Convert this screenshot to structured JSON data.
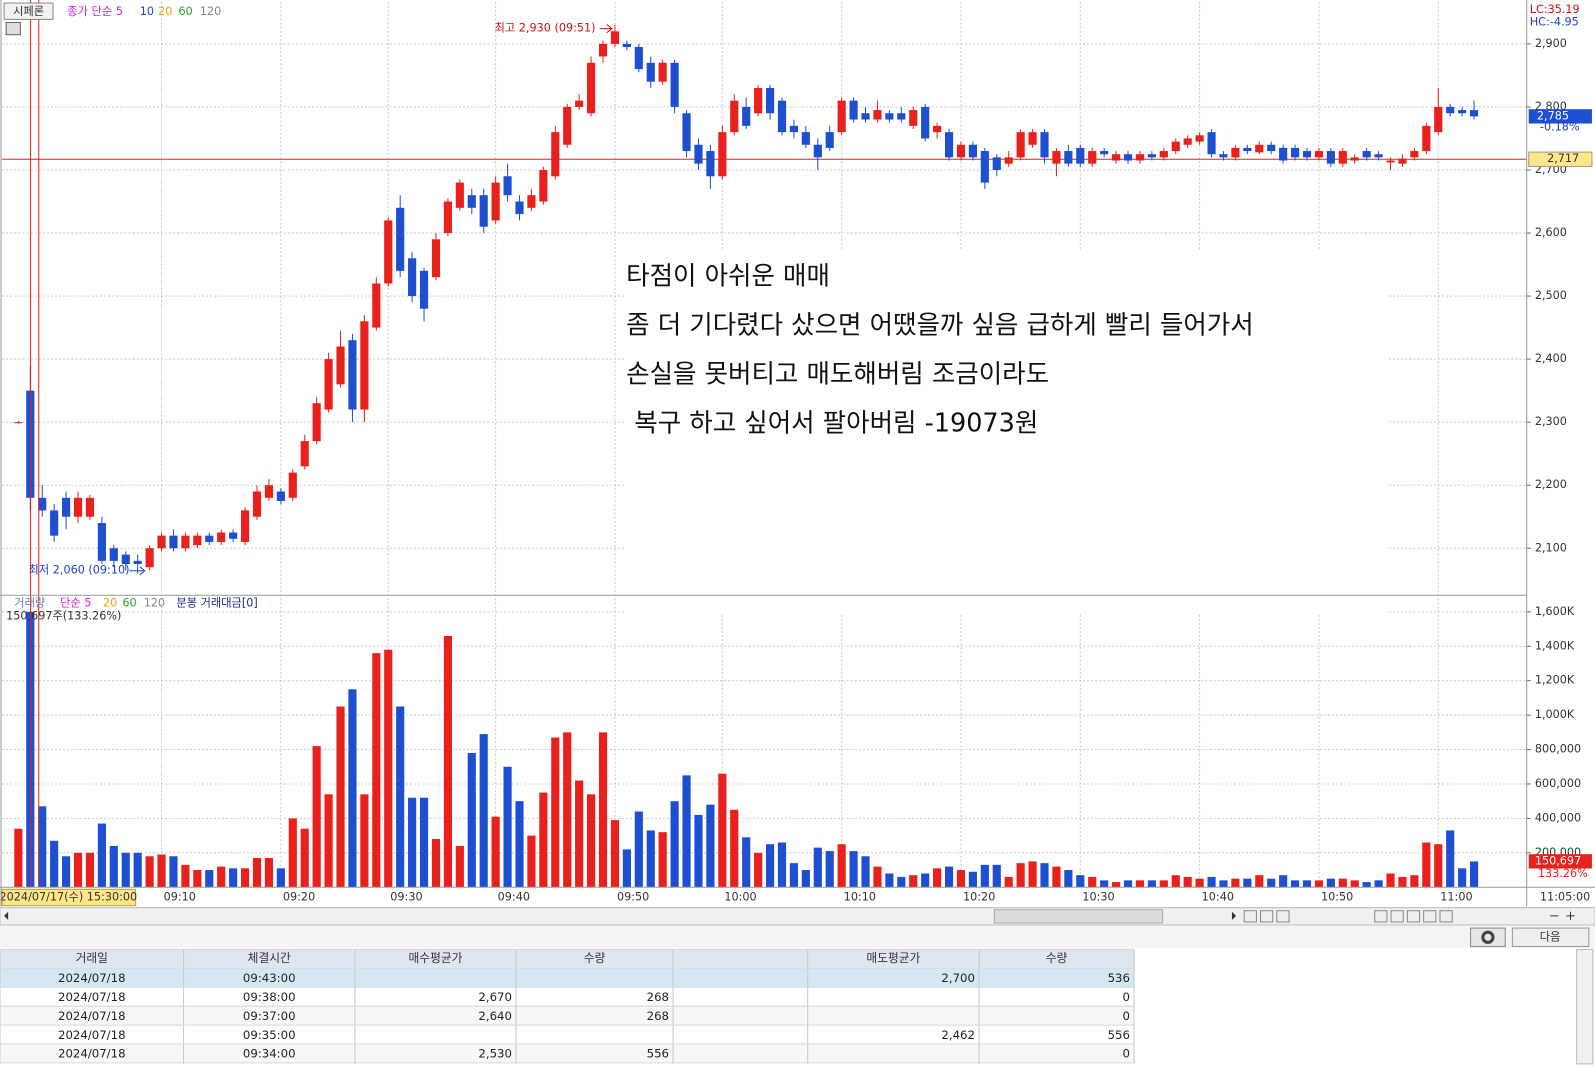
{
  "chart_data": {
    "type": "candlestick",
    "categories": [
      "2024/07/17(수) 15:30:00",
      null,
      null,
      null,
      null,
      null,
      null,
      null,
      null,
      null,
      null,
      null,
      "09:10",
      null,
      null,
      null,
      null,
      null,
      null,
      null,
      null,
      null,
      "09:20",
      null,
      null,
      null,
      null,
      null,
      null,
      null,
      null,
      "09:30",
      null,
      null,
      null,
      null,
      null,
      null,
      null,
      null,
      "09:40",
      null,
      null,
      null,
      null,
      null,
      null,
      null,
      null,
      null,
      "09:50",
      null,
      null,
      null,
      null,
      null,
      null,
      null,
      null,
      "10:00",
      null,
      null,
      null,
      null,
      null,
      null,
      null,
      null,
      null,
      "10:10",
      null,
      null,
      null,
      null,
      null,
      null,
      null,
      null,
      null,
      "10:20",
      null,
      null,
      null,
      null,
      null,
      null,
      null,
      null,
      null,
      "10:30",
      null,
      null,
      null,
      null,
      null,
      null,
      null,
      null,
      null,
      "10:40",
      null,
      null,
      null,
      null,
      null,
      null,
      null,
      null,
      null,
      "10:50",
      null,
      null,
      null,
      null,
      null,
      null,
      null,
      null,
      null,
      "11:00",
      null,
      null,
      null
    ],
    "open": [
      2300,
      2350,
      2180,
      2160,
      2180,
      2150,
      2150,
      2140,
      2100,
      2090,
      2080,
      2070,
      2100,
      2120,
      2100,
      2105,
      2120,
      2110,
      2125,
      2110,
      2150,
      2180,
      2190,
      2180,
      2230,
      2270,
      2320,
      2360,
      2430,
      2320,
      2450,
      2520,
      2640,
      2560,
      2540,
      2530,
      2600,
      2640,
      2660,
      2660,
      2620,
      2690,
      2650,
      2640,
      2650,
      2690,
      2740,
      2800,
      2790,
      2880,
      2900,
      2900,
      2895,
      2870,
      2840,
      2870,
      2790,
      2740,
      2730,
      2690,
      2760,
      2800,
      2790,
      2830,
      2810,
      2770,
      2760,
      2740,
      2760,
      2760,
      2810,
      2790,
      2780,
      2790,
      2790,
      2770,
      2800,
      2760,
      2760,
      2720,
      2740,
      2730,
      2720,
      2710,
      2720,
      2740,
      2760,
      2710,
      2730,
      2735,
      2710,
      2730,
      2715,
      2725,
      2715,
      2725,
      2720,
      2730,
      2740,
      2745,
      2760,
      2725,
      2720,
      2735,
      2728,
      2740,
      2735,
      2735,
      2730,
      2720,
      2730,
      2710,
      2715,
      2730,
      2725,
      2712,
      2710,
      2720,
      2730,
      2760,
      2800,
      2795,
      2795
    ],
    "high": [
      2302,
      2390,
      2200,
      2170,
      2190,
      2190,
      2185,
      2150,
      2105,
      2095,
      2090,
      2105,
      2125,
      2130,
      2125,
      2125,
      2125,
      2130,
      2130,
      2165,
      2200,
      2210,
      2195,
      2225,
      2280,
      2340,
      2410,
      2445,
      2440,
      2470,
      2530,
      2625,
      2660,
      2570,
      2545,
      2600,
      2655,
      2685,
      2670,
      2670,
      2690,
      2710,
      2660,
      2670,
      2705,
      2770,
      2805,
      2820,
      2880,
      2905,
      2930,
      2905,
      2900,
      2880,
      2875,
      2875,
      2795,
      2750,
      2740,
      2770,
      2820,
      2815,
      2835,
      2835,
      2815,
      2780,
      2770,
      2750,
      2770,
      2815,
      2815,
      2800,
      2810,
      2795,
      2800,
      2800,
      2805,
      2775,
      2765,
      2745,
      2745,
      2735,
      2725,
      2730,
      2765,
      2765,
      2765,
      2735,
      2740,
      2740,
      2735,
      2735,
      2730,
      2730,
      2730,
      2730,
      2735,
      2750,
      2755,
      2760,
      2765,
      2730,
      2740,
      2740,
      2745,
      2745,
      2740,
      2740,
      2735,
      2735,
      2735,
      2735,
      2725,
      2735,
      2730,
      2720,
      2725,
      2735,
      2775,
      2830,
      2805,
      2800,
      2810
    ],
    "low": [
      2298,
      2160,
      2150,
      2110,
      2130,
      2140,
      2145,
      2075,
      2070,
      2065,
      2060,
      2065,
      2095,
      2095,
      2095,
      2100,
      2105,
      2105,
      2110,
      2105,
      2145,
      2175,
      2170,
      2175,
      2225,
      2265,
      2315,
      2355,
      2300,
      2300,
      2445,
      2515,
      2530,
      2490,
      2460,
      2525,
      2595,
      2635,
      2630,
      2600,
      2615,
      2650,
      2620,
      2635,
      2645,
      2685,
      2735,
      2795,
      2785,
      2870,
      2895,
      2890,
      2855,
      2830,
      2835,
      2790,
      2720,
      2700,
      2670,
      2685,
      2755,
      2765,
      2785,
      2780,
      2755,
      2750,
      2735,
      2700,
      2730,
      2755,
      2775,
      2775,
      2775,
      2775,
      2775,
      2765,
      2745,
      2750,
      2715,
      2715,
      2715,
      2670,
      2690,
      2705,
      2715,
      2735,
      2710,
      2690,
      2705,
      2705,
      2705,
      2720,
      2710,
      2710,
      2710,
      2715,
      2715,
      2725,
      2735,
      2740,
      2720,
      2715,
      2715,
      2725,
      2725,
      2725,
      2710,
      2715,
      2715,
      2715,
      2705,
      2705,
      2710,
      2715,
      2715,
      2700,
      2705,
      2715,
      2725,
      2755,
      2785,
      2785,
      2780
    ],
    "close": [
      2300,
      2180,
      2160,
      2120,
      2150,
      2180,
      2180,
      2080,
      2080,
      2075,
      2075,
      2100,
      2120,
      2100,
      2120,
      2120,
      2110,
      2125,
      2115,
      2160,
      2190,
      2200,
      2175,
      2220,
      2270,
      2330,
      2400,
      2420,
      2320,
      2460,
      2520,
      2620,
      2540,
      2500,
      2480,
      2590,
      2650,
      2680,
      2640,
      2610,
      2680,
      2660,
      2630,
      2660,
      2700,
      2760,
      2800,
      2810,
      2870,
      2900,
      2920,
      2895,
      2860,
      2840,
      2870,
      2800,
      2730,
      2710,
      2690,
      2760,
      2810,
      2770,
      2830,
      2790,
      2760,
      2760,
      2740,
      2720,
      2735,
      2810,
      2780,
      2780,
      2795,
      2780,
      2780,
      2795,
      2750,
      2770,
      2720,
      2740,
      2720,
      2680,
      2700,
      2720,
      2760,
      2760,
      2720,
      2730,
      2710,
      2710,
      2730,
      2725,
      2725,
      2715,
      2725,
      2720,
      2730,
      2745,
      2750,
      2755,
      2725,
      2720,
      2735,
      2730,
      2740,
      2730,
      2715,
      2720,
      2720,
      2730,
      2710,
      2730,
      2720,
      2720,
      2720,
      2715,
      2718,
      2730,
      2770,
      2800,
      2790,
      2790,
      2785
    ],
    "up_color": "#e8211c",
    "down_color": "#1f4fd1",
    "ylim": [
      2036,
      2967
    ],
    "yticks": [
      {
        "value": 2100,
        "label": "2,100"
      },
      {
        "value": 2200,
        "label": "2,200"
      },
      {
        "value": 2300,
        "label": "2,300"
      },
      {
        "value": 2400,
        "label": "2,400"
      },
      {
        "value": 2500,
        "label": "2,500"
      },
      {
        "value": 2600,
        "label": "2,600"
      },
      {
        "value": 2700,
        "label": "2,700"
      },
      {
        "value": 2800,
        "label": "2,800"
      },
      {
        "value": 2900,
        "label": "2,900"
      }
    ],
    "grid": true,
    "ref_line": {
      "value": 2717,
      "label": "2,717",
      "color": "#e8211c"
    },
    "price_label": {
      "value": 2785,
      "label": "2,785"
    },
    "volume": {
      "values": [
        340000,
        1600000,
        470000,
        270000,
        180000,
        200000,
        200000,
        370000,
        240000,
        200000,
        200000,
        180000,
        190000,
        180000,
        130000,
        100000,
        100000,
        120000,
        110000,
        110000,
        170000,
        170000,
        110000,
        400000,
        340000,
        820000,
        540000,
        1050000,
        1150000,
        540000,
        1360000,
        1380000,
        1050000,
        520000,
        520000,
        280000,
        1460000,
        240000,
        780000,
        890000,
        410000,
        700000,
        500000,
        300000,
        550000,
        870000,
        900000,
        620000,
        540000,
        900000,
        390000,
        220000,
        440000,
        330000,
        320000,
        500000,
        650000,
        420000,
        480000,
        660000,
        450000,
        290000,
        200000,
        250000,
        260000,
        140000,
        100000,
        230000,
        210000,
        250000,
        210000,
        180000,
        120000,
        80000,
        60000,
        70000,
        80000,
        110000,
        120000,
        100000,
        90000,
        130000,
        130000,
        60000,
        140000,
        150000,
        140000,
        120000,
        100000,
        70000,
        60000,
        40000,
        30000,
        40000,
        40000,
        40000,
        40000,
        70000,
        60000,
        50000,
        60000,
        40000,
        50000,
        50000,
        70000,
        50000,
        70000,
        40000,
        40000,
        40000,
        50000,
        50000,
        40000,
        30000,
        40000,
        80000,
        60000,
        70000,
        260000,
        250000,
        330000,
        110000,
        150000
      ],
      "ylim": [
        0,
        1655000
      ],
      "yticks": [
        {
          "value": 200000,
          "label": "200,000"
        },
        {
          "value": 400000,
          "label": "400,000"
        },
        {
          "value": 600000,
          "label": "600,000"
        },
        {
          "value": 800000,
          "label": "800,000"
        },
        {
          "value": 1000000,
          "label": "1,000K"
        },
        {
          "value": 1200000,
          "label": "1,200K"
        },
        {
          "value": 1400000,
          "label": "1,400K"
        },
        {
          "value": 1600000,
          "label": "1,600K"
        }
      ],
      "current": {
        "value": 150697,
        "label": "150,697"
      }
    },
    "high_note": "최고 2,930 (09:51)",
    "low_note": "최저 2,060 (09:10)"
  },
  "ui": {
    "symbol": "시페론",
    "price_legend": [
      "종가 단순 5",
      "10",
      "20",
      "60",
      "120"
    ],
    "volume_legend": [
      "거래량",
      "단순 5",
      "20",
      "60",
      "120",
      "분봉 거래대금[0]"
    ],
    "volume_info": "150,697주(133.26%)",
    "lc": "LC:35.19",
    "hc": "HC:-4.95",
    "change": "-0.18%",
    "vol_ratio": "133.26%",
    "end_time": "11:05:00",
    "next_button": "다음"
  },
  "note": {
    "lines": [
      "타점이 아쉬운 매매",
      "좀 더 기다렸다 샀으면 어땠을까 싶음 급하게 빨리 들어가서",
      "손실을 못버티고 매도해버림 조금이라도",
      " 복구 하고 싶어서 팔아버림 -19073원"
    ]
  },
  "table": {
    "headers": [
      "거래일",
      "체결시간",
      "매수평균가",
      "수량",
      null,
      "매도평균가",
      "수량"
    ],
    "rows": [
      [
        "2024/07/18",
        "09:43:00",
        null,
        null,
        null,
        "2,700",
        "536"
      ],
      [
        "2024/07/18",
        "09:38:00",
        "2,670",
        "268",
        null,
        null,
        "0"
      ],
      [
        "2024/07/18",
        "09:37:00",
        "2,640",
        "268",
        null,
        null,
        "0"
      ],
      [
        "2024/07/18",
        "09:35:00",
        null,
        null,
        null,
        "2,462",
        "556"
      ],
      [
        "2024/07/18",
        "09:34:00",
        "2,530",
        "556",
        null,
        null,
        "0"
      ]
    ]
  }
}
